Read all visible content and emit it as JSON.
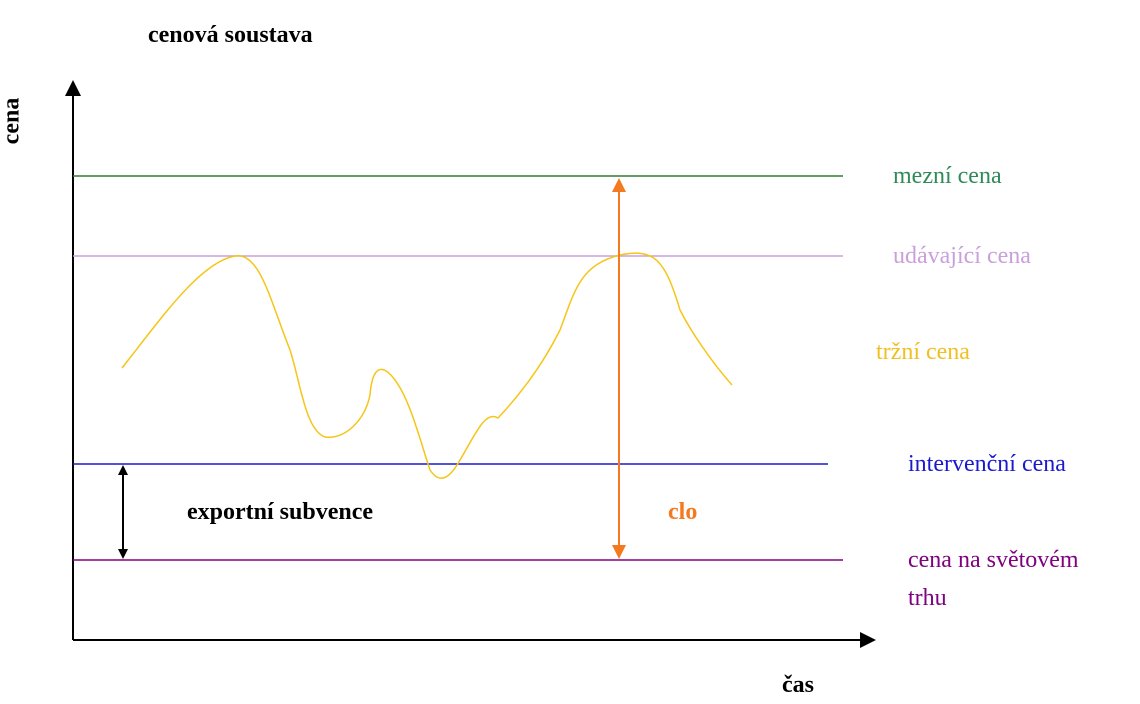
{
  "title": "cenová soustava",
  "axes": {
    "y_label": "cena",
    "x_label": "čas"
  },
  "lines": [
    {
      "label": "mezní cena"
    },
    {
      "label": "udávající cena"
    },
    {
      "label": "tržní cena"
    },
    {
      "label": "intervenční cena"
    },
    {
      "label": "cena na světovém trhu"
    }
  ],
  "annotations": {
    "export": "exportní subvence",
    "tariff": "clo"
  }
}
